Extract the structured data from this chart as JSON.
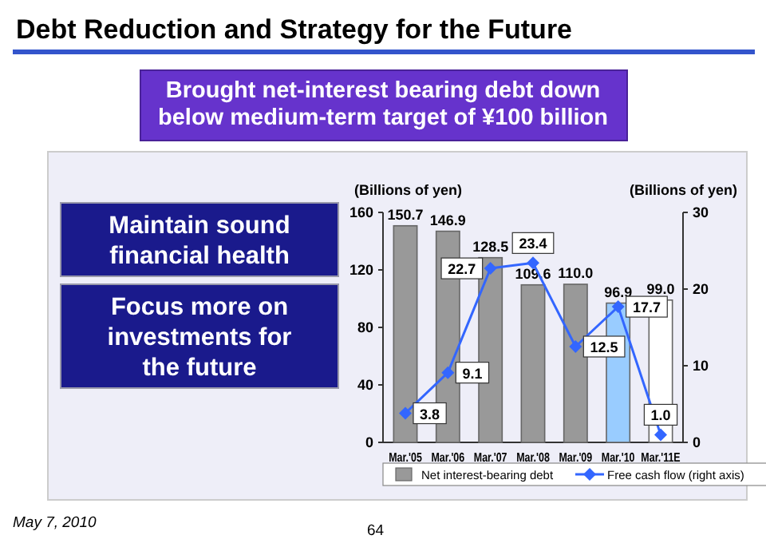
{
  "chart_data": {
    "type": "bar",
    "title": "Debt Reduction and Strategy for the Future",
    "subtitle": "Brought net-interest bearing debt down below medium-term target of ¥100 billion",
    "categories": [
      "Mar.'05",
      "Mar.'06",
      "Mar.'07",
      "Mar.'08",
      "Mar.'09",
      "Mar.'10",
      "Mar.'11E"
    ],
    "series": [
      {
        "name": "Net interest-bearing debt",
        "colors": [
          "#999999",
          "#999999",
          "#999999",
          "#999999",
          "#999999",
          "#99ccff",
          "#ffffff"
        ],
        "values": [
          150.7,
          146.9,
          128.5,
          109.6,
          110.0,
          96.9,
          99.0
        ],
        "value_labels": [
          "150.7",
          "146.9",
          "128.5",
          "109.6",
          "110.0",
          "96.9",
          "99.0"
        ]
      },
      {
        "name": "Free cash flow (right axis)",
        "type": "line",
        "axis": "y2",
        "color": "#3366ff",
        "values": [
          3.8,
          9.1,
          22.7,
          23.4,
          12.5,
          17.7,
          1.0
        ],
        "value_labels": [
          "3.8",
          "9.1",
          "22.7",
          "23.4",
          "12.5",
          "17.7",
          "1.0"
        ]
      }
    ],
    "ylabel": "(Billions of yen)",
    "y2label": "(Billions of yen)",
    "ylim": [
      0,
      160
    ],
    "yticks": [
      0,
      40,
      80,
      120,
      160
    ],
    "y2lim": [
      0,
      30
    ],
    "y2ticks": [
      0,
      10,
      20,
      30
    ],
    "legend": "bottom",
    "marker": "diamond",
    "annotations": [
      "Maintain sound financial health",
      "Focus more on investments for the future",
      "May 7, 2010",
      "64"
    ]
  }
}
